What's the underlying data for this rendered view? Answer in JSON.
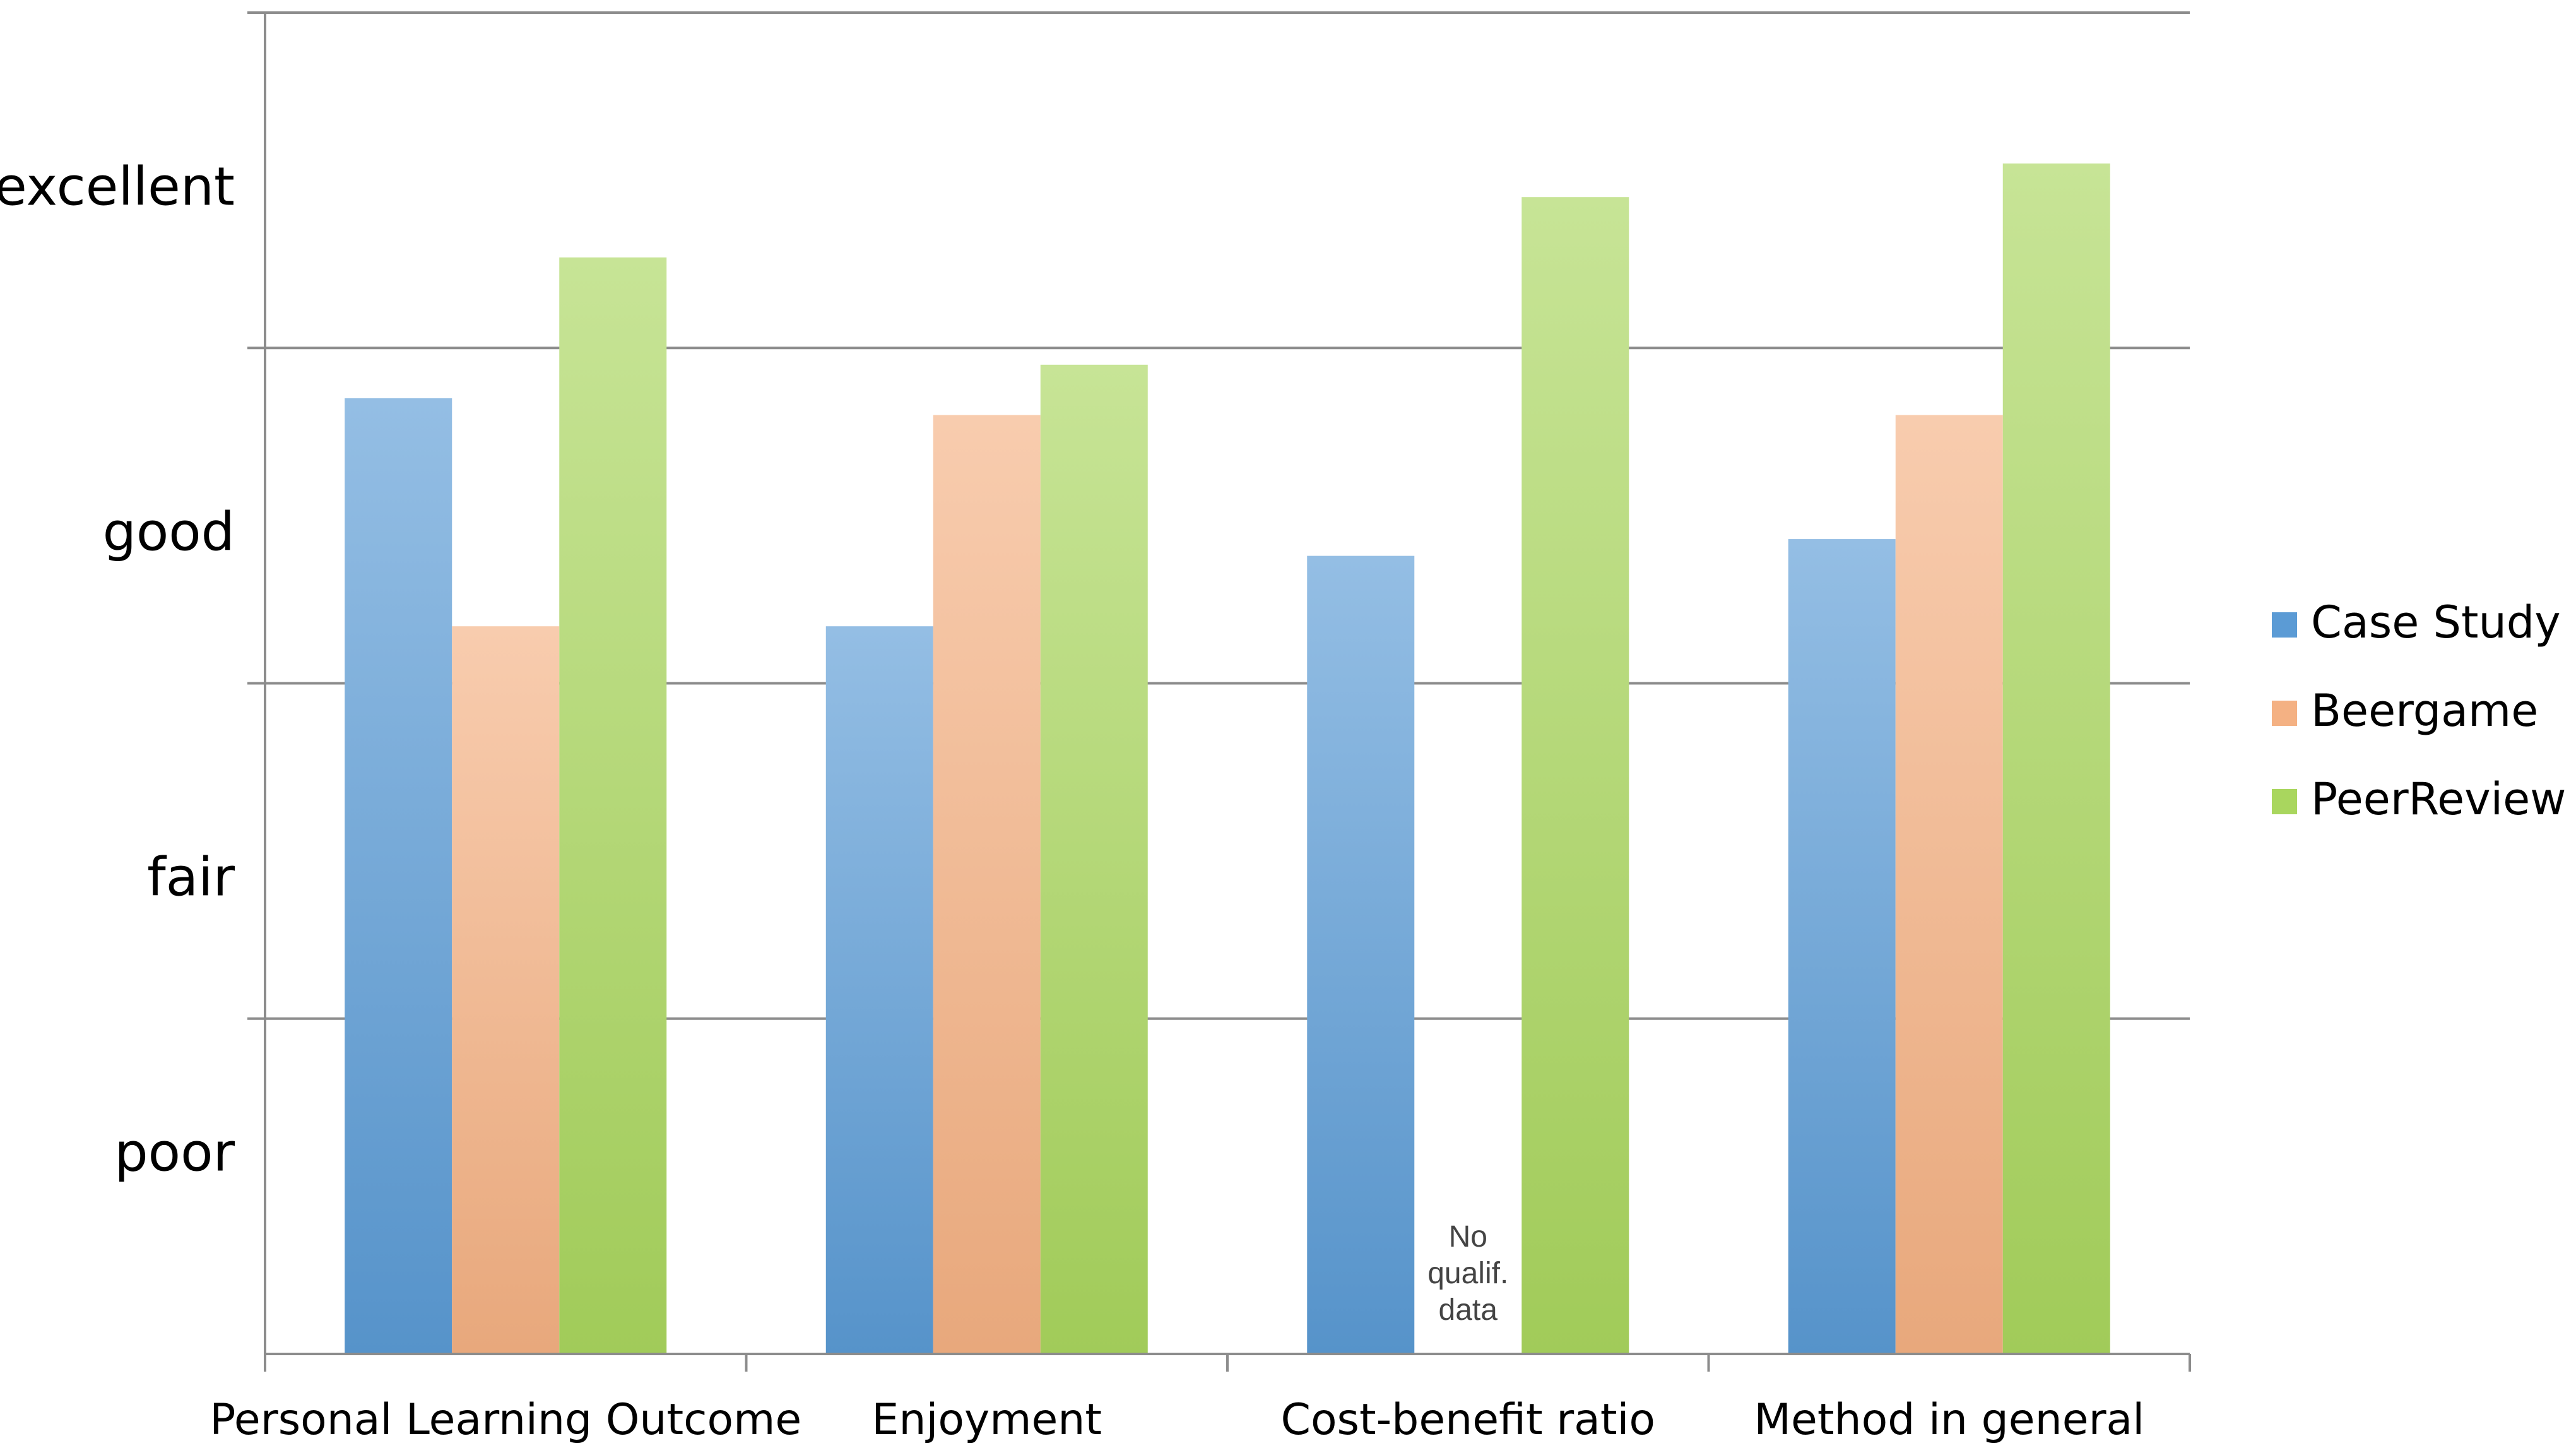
{
  "chart_data": {
    "type": "bar",
    "categories": [
      "Personal Learning Outcome",
      "Enjoyment",
      "Cost-benefit ratio",
      "Method in general"
    ],
    "series": [
      {
        "name": "Case Study",
        "values": [
          2.85,
          2.17,
          2.38,
          2.43
        ],
        "color": "#5b9bd5"
      },
      {
        "name": "Beergame",
        "values": [
          2.17,
          2.8,
          null,
          2.8
        ],
        "color": "#f4b183"
      },
      {
        "name": "PeerReview",
        "values": [
          3.27,
          2.95,
          3.45,
          3.55
        ],
        "color": "#a9d65e"
      }
    ],
    "y_tick_labels": [
      {
        "label": "poor",
        "value": 0.6
      },
      {
        "label": "fair",
        "value": 1.42
      },
      {
        "label": "good",
        "value": 2.45
      },
      {
        "label": "excellent",
        "value": 3.48
      }
    ],
    "ylim": [
      0,
      4
    ],
    "grid": true,
    "legend_position": "right",
    "annotations": [
      {
        "category": "Cost-benefit ratio",
        "series": "Beergame",
        "lines": [
          "No",
          "qualif.",
          "data"
        ]
      }
    ]
  }
}
